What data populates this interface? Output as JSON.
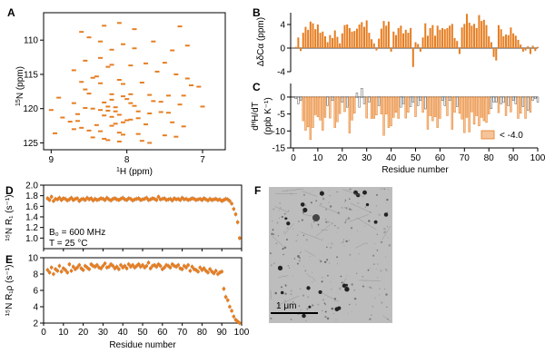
{
  "colors": {
    "orange": "#e67e22",
    "light_orange": "#f5c49a",
    "gray": "#9e9e9e",
    "tem_background": "#bdbdbd"
  },
  "panels": {
    "A": {
      "letter": "A",
      "xlabel_sup": "1",
      "xlabel_rest": "H (ppm)",
      "ylabel_sup": "15",
      "ylabel_rest": "N (ppm)"
    },
    "B": {
      "letter": "B",
      "ylabel": "ΔδCα (ppm)"
    },
    "C": {
      "letter": "C",
      "ylabel_line1": "dᴴH/dT",
      "ylabel_line2": "(ppb K⁻¹)",
      "legend": "< -4.0",
      "xlabel": "Residue number"
    },
    "D": {
      "letter": "D",
      "ylabel": "¹⁵N R₁ (s⁻¹)",
      "annotation_1": "B₀ = 600 MHz",
      "annotation_2": "T = 25 °C"
    },
    "E": {
      "letter": "E",
      "ylabel": "¹⁵N R₁ρ (s⁻¹)",
      "xlabel": "Residue number"
    },
    "F": {
      "letter": "F",
      "scalebar": "1 μm"
    }
  },
  "chart_data": [
    {
      "panel": "A",
      "type": "scatter",
      "xlabel": "1H (ppm)",
      "ylabel": "15N (ppm)",
      "xlim": [
        9.1,
        6.7
      ],
      "ylim": [
        106,
        126
      ],
      "xticks": [
        9,
        8,
        7
      ],
      "yticks": [
        110,
        115,
        120,
        125
      ],
      "x": [
        8.1,
        8.3,
        7.3,
        7.9,
        8.6,
        8.5,
        8.35,
        7.65,
        8.05,
        7.2,
        7.9,
        8.2,
        7.4,
        8.35,
        8.55,
        7.5,
        7.75,
        8.2,
        7.95,
        8.25,
        8.7,
        7.6,
        7.35,
        8.4,
        8.45,
        7.2,
        8.1,
        8.6,
        7.8,
        8.35,
        8.05,
        7.15,
        7.05,
        8.55,
        8.5,
        8.2,
        7.95,
        7.7,
        7.25,
        7.45,
        8.05,
        8.9,
        8.0,
        8.2,
        7.65,
        7.55,
        8.3,
        8.7,
        7.95,
        7.3,
        7.9,
        8.25,
        7.0,
        8.15,
        8.55,
        8.45,
        8.35,
        8.25,
        8.15,
        7.85,
        7.55,
        7.45,
        7.7,
        8.65,
        8.1,
        8.3,
        8.2,
        7.85,
        7.95,
        8.0,
        8.65,
        8.75,
        8.05,
        7.4,
        8.15,
        7.75,
        8.4,
        8.2,
        7.25,
        8.6,
        8.7,
        8.5,
        8.35,
        8.1,
        8.95,
        7.85,
        8.05,
        7.5,
        7.35,
        8.45,
        8.3,
        8.25,
        7.8,
        8.1,
        7.7,
        9.0,
        8.85
      ],
      "y": [
        107.5,
        107.9,
        108.0,
        108.4,
        108.8,
        109.6,
        110.2,
        110.2,
        110.6,
        110.8,
        111.2,
        111.4,
        111.5,
        112.6,
        113.0,
        113.3,
        113.4,
        113.6,
        113.7,
        113.9,
        114.4,
        114.6,
        115.0,
        115.3,
        115.5,
        115.6,
        115.8,
        116.1,
        116.2,
        116.3,
        116.4,
        116.6,
        116.8,
        117.2,
        117.8,
        117.9,
        117.9,
        118.0,
        118.1,
        118.1,
        118.2,
        118.4,
        118.6,
        118.7,
        118.9,
        119.0,
        119.1,
        119.2,
        119.2,
        119.4,
        119.6,
        119.7,
        119.7,
        119.8,
        119.9,
        120.0,
        120.2,
        120.3,
        120.4,
        120.4,
        120.5,
        120.6,
        120.7,
        120.8,
        120.9,
        121.0,
        121.2,
        121.4,
        121.6,
        121.7,
        121.8,
        121.9,
        122.0,
        122.0,
        122.2,
        122.3,
        122.4,
        122.5,
        122.6,
        122.8,
        123.0,
        123.2,
        123.3,
        123.5,
        123.6,
        123.7,
        123.8,
        123.9,
        124.1,
        124.2,
        124.4,
        124.6,
        124.7,
        124.8,
        125.0,
        120.2,
        121.3
      ]
    },
    {
      "panel": "B",
      "type": "bar",
      "ylabel": "ΔδCα (ppm)",
      "ylim": [
        -4,
        6
      ],
      "yticks": [
        -4,
        0,
        4
      ],
      "x_start": 1,
      "values": [
        0.2,
        1.8,
        -0.5,
        2.6,
        3.6,
        3.1,
        4.5,
        4.2,
        3.2,
        4.0,
        2.6,
        2.8,
        2.0,
        1.0,
        2.2,
        1.7,
        3.0,
        1.9,
        0.8,
        2.5,
        3.9,
        4.0,
        3.4,
        2.8,
        2.9,
        3.3,
        4.0,
        4.4,
        3.6,
        4.7,
        2.6,
        1.5,
        0.8,
        -0.4,
        1.6,
        3.3,
        4.6,
        3.8,
        4.5,
        -0.6,
        2.8,
        2.2,
        3.4,
        3.8,
        2.5,
        3.1,
        2.6,
        3.4,
        -3.2,
        1.0,
        0.7,
        -0.6,
        1.8,
        4.2,
        2.1,
        3.4,
        3.9,
        2.1,
        3.8,
        3.1,
        3.4,
        3.2,
        3.4,
        3.8,
        4.1,
        1.7,
        1.2,
        -1.0,
        3.5,
        4.1,
        5.8,
        4.3,
        3.8,
        4.1,
        3.4,
        5.6,
        4.6,
        4.8,
        3.9,
        2.0,
        1.0,
        -1.5,
        -2.1,
        3.9,
        3.2,
        2.0,
        2.3,
        2.2,
        3.5,
        2.5,
        2.1,
        1.4,
        0.6,
        -0.6,
        -0.4,
        0.3,
        -1.0,
        0.4,
        -0.5,
        0.2
      ]
    },
    {
      "panel": "C",
      "type": "bar",
      "ylabel": "dHN/dT (ppb K-1)",
      "xlabel": "Residue number",
      "ylim": [
        -15,
        4
      ],
      "yticks": [
        -15,
        -10,
        -5,
        0
      ],
      "xticks": [
        0,
        10,
        20,
        30,
        40,
        50,
        60,
        70,
        80,
        90,
        100
      ],
      "x_start": 1,
      "threshold": -4.0,
      "legend": "< -4.0",
      "values": [
        -0.5,
        -2.0,
        -1.0,
        -7.0,
        -9.8,
        -8.8,
        -12.5,
        -9.0,
        -5.2,
        -5.8,
        -6.8,
        -9.8,
        -6.0,
        -2.5,
        -6.2,
        -1.0,
        -9.0,
        -7.3,
        -4.9,
        -1.5,
        -4.3,
        -3.0,
        -10.6,
        -6.8,
        -4.8,
        1.2,
        -3.0,
        2.6,
        -2.0,
        -6.2,
        -1.5,
        -6.3,
        -6.3,
        -5.3,
        -2.5,
        -5.0,
        -11.3,
        -5.0,
        -9.0,
        -8.5,
        -6.0,
        -4.5,
        -6.3,
        -3.0,
        -2.0,
        -6.2,
        -4.5,
        -2.8,
        -1.5,
        -5.8,
        -2.5,
        -1.0,
        -4.5,
        -3.5,
        -9.5,
        -5.5,
        -7.0,
        -5.8,
        -9.0,
        -6.3,
        -1.0,
        -2.5,
        -5.5,
        -1.0,
        -9.5,
        -4.5,
        -2.8,
        -4.8,
        -6.5,
        -10.5,
        -6.0,
        -10.3,
        -4.4,
        -8.0,
        -5.5,
        -8.5,
        -6.0,
        -7.0,
        -7.5,
        -5.0,
        -3.4,
        -1.5,
        -1.5,
        -4.6,
        -2.0,
        -1.6,
        -5.5,
        -2.5,
        -4.4,
        -1.0,
        -2.0,
        -6.3,
        -4.8,
        -2.8,
        -6.3,
        -3.9,
        -4.5,
        -1.0,
        -0.5,
        -1.5
      ]
    },
    {
      "panel": "D",
      "type": "scatter",
      "ylabel": "15N R1 (s-1)",
      "xlim": [
        0,
        100
      ],
      "ylim": [
        0.8,
        2.0
      ],
      "yticks": [
        1.0,
        1.2,
        1.4,
        1.6,
        1.8,
        2.0
      ],
      "xticks": [
        0,
        10,
        20,
        30,
        40,
        50,
        60,
        70,
        80,
        90,
        100
      ],
      "annotations": [
        "B0 = 600 MHz",
        "T = 25 °C"
      ],
      "x_start": 2,
      "values": [
        1.75,
        1.72,
        1.78,
        1.7,
        1.74,
        1.73,
        1.76,
        1.72,
        1.75,
        1.74,
        1.71,
        1.73,
        1.76,
        1.72,
        1.74,
        1.75,
        1.7,
        1.73,
        1.74,
        1.72,
        1.76,
        1.73,
        1.75,
        1.71,
        1.74,
        1.72,
        1.73,
        1.75,
        1.74,
        1.72,
        1.76,
        1.73,
        1.71,
        1.74,
        1.75,
        1.73,
        1.72,
        1.74,
        1.76,
        1.73,
        1.72,
        1.75,
        1.74,
        1.71,
        1.73,
        1.74,
        1.75,
        1.72,
        1.73,
        1.74,
        1.76,
        1.72,
        1.73,
        1.75,
        1.74,
        1.72,
        1.78,
        1.73,
        1.74,
        1.75,
        1.72,
        1.73,
        1.74,
        1.71,
        1.75,
        1.73,
        1.74,
        1.72,
        1.76,
        1.73,
        1.74,
        1.72,
        1.73,
        1.75,
        1.74,
        1.72,
        1.73,
        1.74,
        1.72,
        1.75,
        1.73,
        1.71,
        1.74,
        1.72,
        1.73,
        1.74,
        1.72,
        1.73,
        1.7,
        1.72,
        1.74,
        1.73,
        1.7,
        1.65,
        1.55,
        1.45,
        1.3,
        1.0
      ]
    },
    {
      "panel": "E",
      "type": "scatter",
      "ylabel": "15N R1ρ (s-1)",
      "xlabel": "Residue number",
      "xlim": [
        0,
        100
      ],
      "ylim": [
        2,
        10
      ],
      "yticks": [
        2,
        4,
        6,
        8,
        10
      ],
      "xticks": [
        0,
        10,
        20,
        30,
        40,
        50,
        60,
        70,
        80,
        90,
        100
      ],
      "x_start": 2,
      "values": [
        8.5,
        8.2,
        8.8,
        8.0,
        8.6,
        8.4,
        9.0,
        8.3,
        8.7,
        8.5,
        8.2,
        9.2,
        8.4,
        8.9,
        8.6,
        8.8,
        9.1,
        8.7,
        8.5,
        9.0,
        8.8,
        8.6,
        9.2,
        9.0,
        8.9,
        9.1,
        8.8,
        8.7,
        9.0,
        9.3,
        8.8,
        8.9,
        9.2,
        9.0,
        8.7,
        8.9,
        8.6,
        9.1,
        8.8,
        9.0,
        8.7,
        9.2,
        8.9,
        9.1,
        8.8,
        9.0,
        9.2,
        8.9,
        9.1,
        8.8,
        9.0,
        9.4,
        8.7,
        9.0,
        9.1,
        8.9,
        9.2,
        9.0,
        8.6,
        8.8,
        9.1,
        9.0,
        8.8,
        9.2,
        9.0,
        8.9,
        9.1,
        8.7,
        8.6,
        9.0,
        8.8,
        9.1,
        8.4,
        8.9,
        8.6,
        8.5,
        8.3,
        8.8,
        8.5,
        8.7,
        8.4,
        8.2,
        8.6,
        8.3,
        8.1,
        8.4,
        8.0,
        8.2,
        8.3,
        6.2,
        5.2,
        4.8,
        4.0,
        3.5,
        2.8,
        2.4,
        2.2,
        2.0
      ]
    }
  ]
}
